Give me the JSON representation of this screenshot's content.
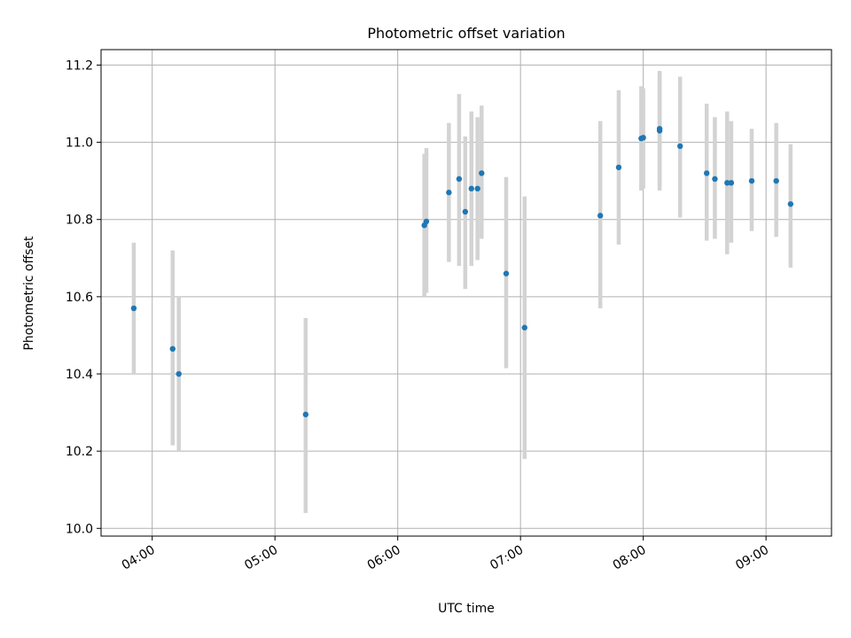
{
  "chart_data": {
    "type": "scatter",
    "title": "Photometric offset variation",
    "xlabel": "UTC time",
    "ylabel": "Photometric offset",
    "xlim": [
      "03:35",
      "09:32"
    ],
    "ylim": [
      9.98,
      11.24
    ],
    "xticks": [
      "04:00",
      "05:00",
      "06:00",
      "07:00",
      "08:00",
      "09:00"
    ],
    "yticks": [
      10.0,
      10.2,
      10.4,
      10.6,
      10.8,
      11.0,
      11.2
    ],
    "grid": true,
    "colors": {
      "points": "#1f77b4",
      "errorbars": "#d3d3d3",
      "grid": "#b0b0b0"
    },
    "points": [
      {
        "x": "03:51",
        "y": 10.57,
        "ylow": 10.4,
        "yhigh": 10.74
      },
      {
        "x": "04:10",
        "y": 10.465,
        "ylow": 10.215,
        "yhigh": 10.72
      },
      {
        "x": "04:13",
        "y": 10.4,
        "ylow": 10.2,
        "yhigh": 10.6
      },
      {
        "x": "05:15",
        "y": 10.295,
        "ylow": 10.04,
        "yhigh": 10.545
      },
      {
        "x": "06:13",
        "y": 10.785,
        "ylow": 10.6,
        "yhigh": 10.97
      },
      {
        "x": "06:14",
        "y": 10.795,
        "ylow": 10.61,
        "yhigh": 10.985
      },
      {
        "x": "06:25",
        "y": 10.87,
        "ylow": 10.69,
        "yhigh": 11.05
      },
      {
        "x": "06:30",
        "y": 10.905,
        "ylow": 10.68,
        "yhigh": 11.125
      },
      {
        "x": "06:33",
        "y": 10.82,
        "ylow": 10.62,
        "yhigh": 11.015
      },
      {
        "x": "06:36",
        "y": 10.88,
        "ylow": 10.68,
        "yhigh": 11.08
      },
      {
        "x": "06:39",
        "y": 10.88,
        "ylow": 10.695,
        "yhigh": 11.065
      },
      {
        "x": "06:41",
        "y": 10.92,
        "ylow": 10.75,
        "yhigh": 11.095
      },
      {
        "x": "06:53",
        "y": 10.66,
        "ylow": 10.415,
        "yhigh": 10.91
      },
      {
        "x": "07:02",
        "y": 10.52,
        "ylow": 10.18,
        "yhigh": 10.86
      },
      {
        "x": "07:39",
        "y": 10.81,
        "ylow": 10.57,
        "yhigh": 11.055
      },
      {
        "x": "07:48",
        "y": 10.935,
        "ylow": 10.735,
        "yhigh": 11.135
      },
      {
        "x": "07:59",
        "y": 11.01,
        "ylow": 10.875,
        "yhigh": 11.145
      },
      {
        "x": "08:00",
        "y": 11.012,
        "ylow": 10.88,
        "yhigh": 11.14
      },
      {
        "x": "08:08",
        "y": 11.035,
        "ylow": 10.885,
        "yhigh": 11.185
      },
      {
        "x": "08:08",
        "y": 11.03,
        "ylow": 10.875,
        "yhigh": 11.18
      },
      {
        "x": "08:18",
        "y": 10.99,
        "ylow": 10.805,
        "yhigh": 11.17
      },
      {
        "x": "08:31",
        "y": 10.92,
        "ylow": 10.745,
        "yhigh": 11.1
      },
      {
        "x": "08:35",
        "y": 10.905,
        "ylow": 10.75,
        "yhigh": 11.065
      },
      {
        "x": "08:41",
        "y": 10.895,
        "ylow": 10.71,
        "yhigh": 11.08
      },
      {
        "x": "08:43",
        "y": 10.895,
        "ylow": 10.74,
        "yhigh": 11.055
      },
      {
        "x": "08:53",
        "y": 10.9,
        "ylow": 10.77,
        "yhigh": 11.035
      },
      {
        "x": "09:05",
        "y": 10.9,
        "ylow": 10.755,
        "yhigh": 11.05
      },
      {
        "x": "09:12",
        "y": 10.84,
        "ylow": 10.675,
        "yhigh": 10.995
      }
    ]
  }
}
